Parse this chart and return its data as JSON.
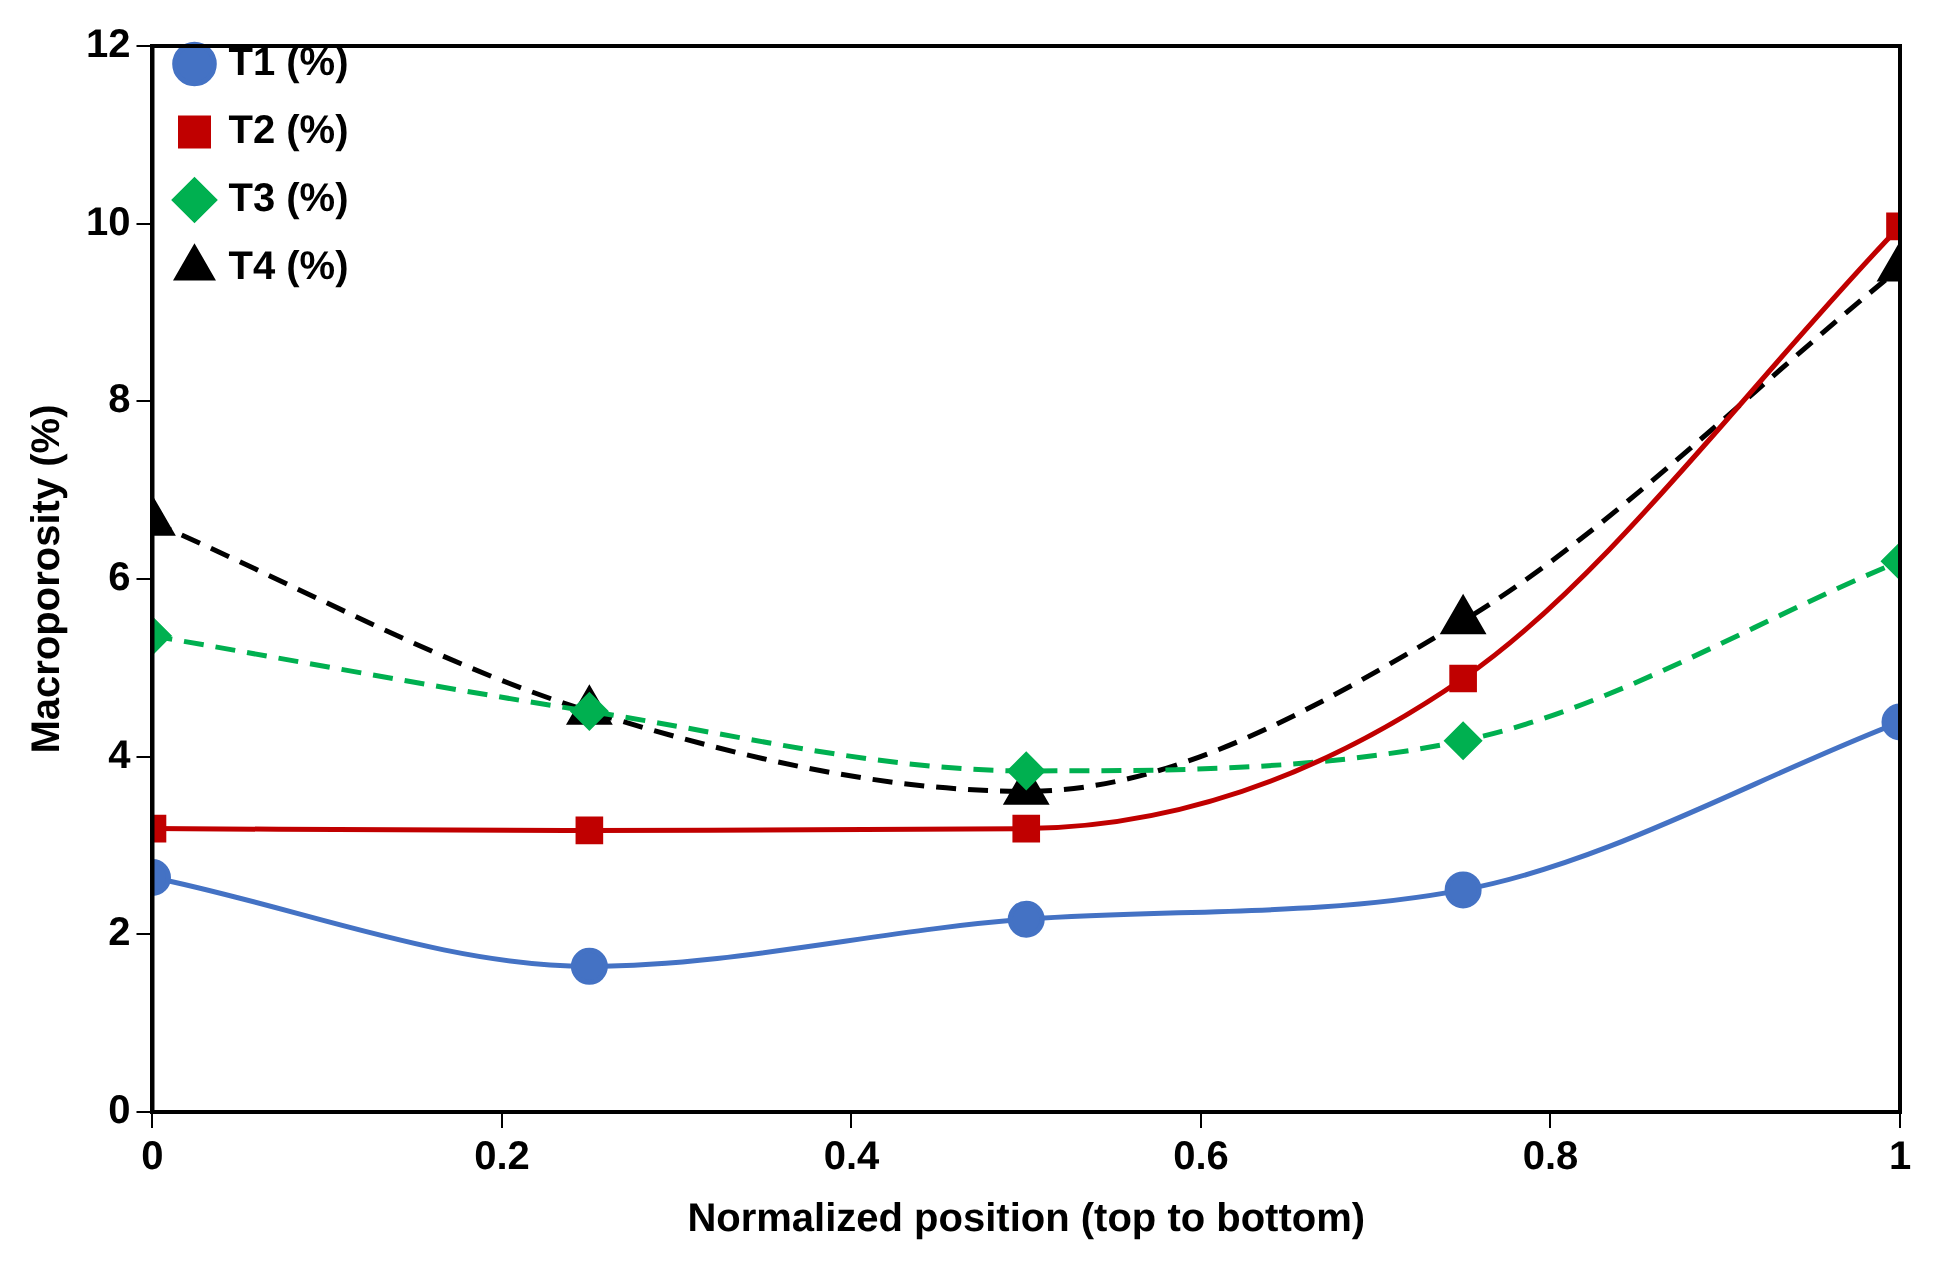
{
  "chart_data": {
    "type": "line",
    "xlabel": "Normalized position (top to bottom)",
    "ylabel": "Macroporosity (%)",
    "x": [
      0,
      0.25,
      0.5,
      0.75,
      1
    ],
    "series": [
      {
        "name": "T1 (%)",
        "color": "#4472c4",
        "marker": "circle",
        "line_style": "solid",
        "values": [
          2.64,
          1.64,
          2.17,
          2.5,
          4.39
        ]
      },
      {
        "name": "T2 (%)",
        "color": "#c00000",
        "marker": "square",
        "line_style": "solid",
        "values": [
          3.19,
          3.17,
          3.19,
          4.88,
          9.97
        ]
      },
      {
        "name": "T3 (%)",
        "color": "#00b050",
        "marker": "diamond",
        "line_style": "dashed",
        "values": [
          5.36,
          4.51,
          3.84,
          4.18,
          6.2
        ]
      },
      {
        "name": "T4 (%)",
        "color": "#000000",
        "marker": "triangle",
        "line_style": "dashed",
        "values": [
          6.64,
          4.51,
          3.61,
          5.53,
          9.5
        ]
      }
    ],
    "xlim": [
      0,
      1
    ],
    "xticks": [
      0,
      0.2,
      0.4,
      0.6,
      0.8,
      1
    ],
    "ylim": [
      0,
      12
    ],
    "yticks": [
      0,
      2,
      4,
      6,
      8,
      10,
      12
    ],
    "grid": false,
    "legend": "top left"
  }
}
